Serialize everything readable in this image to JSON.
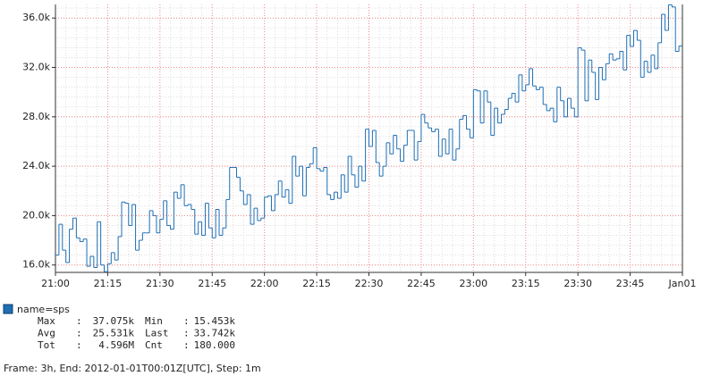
{
  "chart_data": {
    "type": "step",
    "series": [
      {
        "name": "name=sps",
        "color": "#1f6fb4",
        "values": [
          16800,
          19300,
          17200,
          16200,
          18900,
          19800,
          18200,
          17900,
          18100,
          15900,
          16700,
          15800,
          19500,
          16000,
          15453,
          16100,
          17000,
          16400,
          18300,
          21100,
          21000,
          19200,
          20900,
          17200,
          18000,
          18600,
          18600,
          20400,
          20000,
          18600,
          19700,
          21200,
          19200,
          18900,
          21900,
          21400,
          22500,
          20800,
          20900,
          20500,
          18500,
          19500,
          18400,
          21000,
          19000,
          18200,
          20500,
          18400,
          19000,
          21300,
          23900,
          23900,
          23100,
          22000,
          20900,
          21700,
          19300,
          20600,
          19600,
          19800,
          21500,
          21600,
          20400,
          21700,
          22800,
          21500,
          22100,
          21000,
          24800,
          23200,
          24000,
          21600,
          23900,
          24200,
          25500,
          23800,
          23600,
          23900,
          21700,
          21300,
          21900,
          21400,
          23300,
          21900,
          24800,
          23300,
          22300,
          24000,
          22800,
          27000,
          25600,
          26900,
          24300,
          23200,
          24000,
          25900,
          25000,
          26500,
          25400,
          24400,
          25700,
          26900,
          26900,
          24500,
          26000,
          28200,
          27500,
          27100,
          26800,
          27000,
          24800,
          26200,
          25000,
          27000,
          24500,
          25400,
          27800,
          28100,
          27000,
          26300,
          30200,
          30100,
          27500,
          30100,
          29200,
          26500,
          28700,
          27500,
          28200,
          28600,
          29500,
          29900,
          29200,
          31400,
          30100,
          30600,
          31900,
          30500,
          30200,
          30400,
          29000,
          28500,
          28700,
          27600,
          30400,
          29300,
          28000,
          29500,
          28700,
          28000,
          33600,
          33400,
          29300,
          32600,
          31600,
          29400,
          32000,
          31000,
          32300,
          33100,
          32600,
          32700,
          33300,
          31800,
          34600,
          33700,
          35000,
          34200,
          31200,
          32500,
          31600,
          33000,
          31900,
          34000,
          36300,
          35000,
          37075,
          36900,
          33300,
          33742
        ]
      }
    ],
    "ylim": [
      15400,
      37100
    ],
    "yticks": [
      {
        "value": 16000,
        "label": "16.0k"
      },
      {
        "value": 20000,
        "label": "20.0k"
      },
      {
        "value": 24000,
        "label": "24.0k"
      },
      {
        "value": 28000,
        "label": "28.0k"
      },
      {
        "value": 32000,
        "label": "32.0k"
      },
      {
        "value": 36000,
        "label": "36.0k"
      }
    ],
    "xticks": [
      "21:00",
      "21:15",
      "21:30",
      "21:45",
      "22:00",
      "22:15",
      "22:30",
      "22:45",
      "23:00",
      "23:15",
      "23:30",
      "23:45",
      "Jan01"
    ],
    "grid": true,
    "stats": [
      [
        {
          "label": "Max",
          "sep": ":",
          "value": "37.075k"
        },
        {
          "label": "Min",
          "sep": ":",
          "value": "15.453k"
        }
      ],
      [
        {
          "label": "Avg",
          "sep": ":",
          "value": "25.531k"
        },
        {
          "label": "Last",
          "sep": ":",
          "value": "33.742k"
        }
      ],
      [
        {
          "label": "Tot",
          "sep": ":",
          "value": "4.596M"
        },
        {
          "label": "Cnt",
          "sep": ":",
          "value": "180.000"
        }
      ]
    ],
    "footer": "Frame: 3h, End: 2012-01-01T00:01Z[UTC], Step: 1m"
  }
}
